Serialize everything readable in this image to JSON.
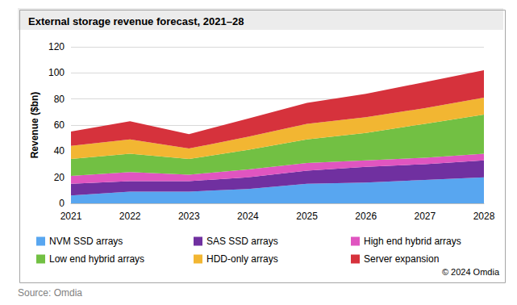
{
  "chart_data": {
    "type": "area",
    "title": "External storage revenue forecast, 2021–28",
    "y_label": "Revenue ($bn)",
    "source": "Source: Omdia",
    "copyright": "© 2024 Omdia",
    "categories": [
      "2021",
      "2022",
      "2023",
      "2024",
      "2025",
      "2026",
      "2027",
      "2028"
    ],
    "series": [
      {
        "name": "NVM SSD arrays",
        "color": "#58a6f0",
        "values": [
          6,
          9,
          9,
          11,
          15,
          16,
          18,
          20
        ]
      },
      {
        "name": "SAS SSD arrays",
        "color": "#7030a0",
        "values": [
          9,
          8,
          8,
          9,
          10,
          12,
          12,
          13
        ]
      },
      {
        "name": "High end hybrid arrays",
        "color": "#e055c0",
        "values": [
          6,
          7,
          5,
          6,
          6,
          5,
          5,
          5
        ]
      },
      {
        "name": "Low end hybrid arrays",
        "color": "#72c043",
        "values": [
          13,
          14,
          12,
          15,
          18,
          21,
          26,
          30
        ]
      },
      {
        "name": "HDD-only arrays",
        "color": "#f2b632",
        "values": [
          10,
          11,
          8,
          10,
          12,
          12,
          12,
          13
        ]
      },
      {
        "name": "Server expansion",
        "color": "#d6323c",
        "values": [
          11,
          14,
          11,
          14,
          16,
          18,
          20,
          21
        ]
      }
    ],
    "ylim": [
      0,
      120
    ],
    "yticks": [
      0,
      20,
      40,
      60,
      80,
      100,
      120
    ],
    "stacked": true,
    "grid": true,
    "legend": "bottom"
  }
}
